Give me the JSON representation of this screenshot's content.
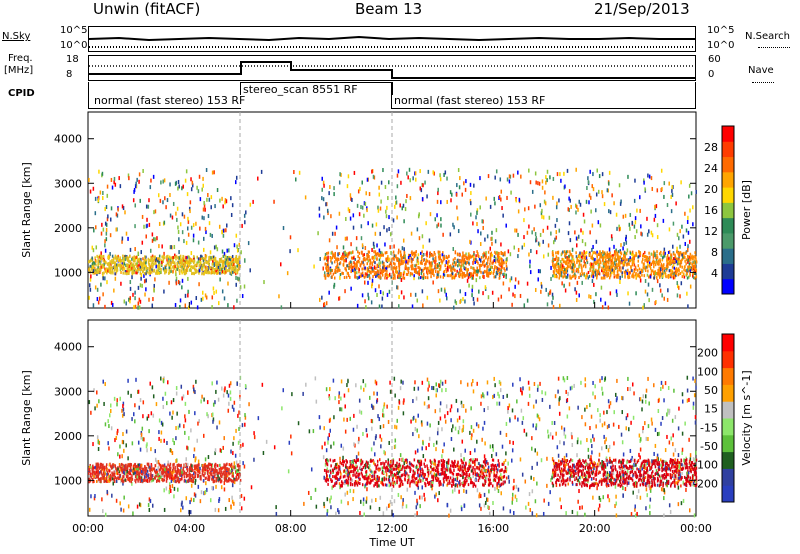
{
  "header": {
    "station": "Unwin (fitACF)",
    "beam": "Beam 13",
    "date": "21/Sep/2013"
  },
  "panels": {
    "nsky_label": "N.Sky",
    "nsearch_label": "N.Search",
    "nsky_ticks": [
      "10^5",
      "10^0"
    ],
    "nsearch_ticks": [
      "10^5",
      "10^0"
    ],
    "freq_label": "Freq.",
    "freq_unit": "[MHz]",
    "freq_ticks": [
      "18",
      "8"
    ],
    "nave_label": "Nave",
    "nave_ticks": [
      "60",
      "0"
    ],
    "cpid_label": "CPID",
    "cpid_segments": [
      {
        "text": "normal (fast stereo) 153 RF"
      },
      {
        "text": "stereo_scan 8551 RF"
      },
      {
        "text": "normal (fast stereo) 153 RF"
      }
    ]
  },
  "chart_data": [
    {
      "type": "heatmap",
      "title": "",
      "ylabel": "Slant Range [km]",
      "xlabel": "",
      "x_ticks": [
        "00:00",
        "04:00",
        "08:00",
        "12:00",
        "16:00",
        "20:00",
        "00:00"
      ],
      "y_ticks": [
        1000,
        2000,
        3000,
        4000
      ],
      "ylim": [
        200,
        4600
      ],
      "xlim_hours": [
        0,
        24
      ],
      "colorbar": {
        "label": "Power [dB]",
        "ticks": [
          "28",
          "24",
          "20",
          "16",
          "12",
          "8",
          "4"
        ],
        "colors": [
          "#0000ff",
          "#1e3c96",
          "#2a6e8a",
          "#4b9a6a",
          "#2e8b57",
          "#8dc63f",
          "#ffd700",
          "#ffa500",
          "#ff6a00",
          "#ff3c00",
          "#ff0000"
        ]
      },
      "bands": [
        {
          "x0": 0,
          "x1": 6,
          "y0": 1000,
          "y1": 1400,
          "color": "#e3c020"
        },
        {
          "x0": 9.3,
          "x1": 16.5,
          "y0": 900,
          "y1": 1500,
          "color": "#ff7a00"
        },
        {
          "x0": 18.3,
          "x1": 24,
          "y0": 900,
          "y1": 1500,
          "color": "#ff8a00"
        }
      ]
    },
    {
      "type": "heatmap",
      "title": "",
      "ylabel": "Slant Range [km]",
      "xlabel": "Time UT",
      "x_ticks": [
        "00:00",
        "04:00",
        "08:00",
        "12:00",
        "16:00",
        "20:00",
        "00:00"
      ],
      "y_ticks": [
        1000,
        2000,
        3000,
        4000
      ],
      "ylim": [
        200,
        4600
      ],
      "xlim_hours": [
        0,
        24
      ],
      "colorbar": {
        "label": "Velocity [m s^-1]",
        "ticks": [
          "200",
          "100",
          "50",
          "15",
          "-15",
          "-50",
          "-100",
          "-200"
        ],
        "colors": [
          "#2a3fbf",
          "#3040a0",
          "#1f5f20",
          "#5cc03a",
          "#8ce66a",
          "#c0c0c0",
          "#ffa000",
          "#ff7a00",
          "#ff3000",
          "#ff0000"
        ]
      },
      "bands": [
        {
          "x0": 0,
          "x1": 6,
          "y0": 1000,
          "y1": 1400,
          "color": "#e03020"
        },
        {
          "x0": 9.3,
          "x1": 16.5,
          "y0": 900,
          "y1": 1500,
          "color": "#e00010"
        },
        {
          "x0": 18.3,
          "x1": 24,
          "y0": 900,
          "y1": 1500,
          "color": "#d80010"
        }
      ]
    }
  ]
}
